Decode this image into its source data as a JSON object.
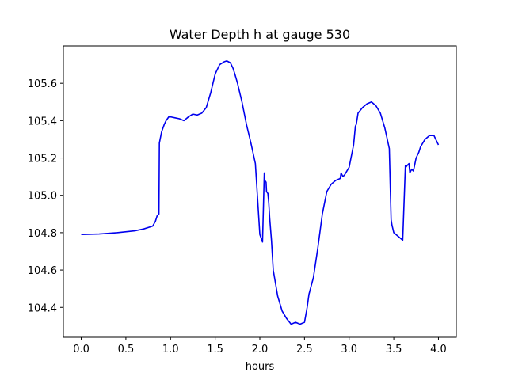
{
  "chart_data": {
    "type": "line",
    "title": "Water Depth h at gauge 530",
    "xlabel": "hours",
    "ylabel": "",
    "xlim": [
      -0.2,
      4.2
    ],
    "ylim": [
      104.24,
      105.8
    ],
    "xticks": [
      0.0,
      0.5,
      1.0,
      1.5,
      2.0,
      2.5,
      3.0,
      3.5,
      4.0
    ],
    "xtick_labels": [
      "0.0",
      "0.5",
      "1.0",
      "1.5",
      "2.0",
      "2.5",
      "3.0",
      "3.5",
      "4.0"
    ],
    "yticks": [
      104.4,
      104.6,
      104.8,
      105.0,
      105.2,
      105.4,
      105.6
    ],
    "ytick_labels": [
      "104.4",
      "104.6",
      "104.8",
      "105.0",
      "105.2",
      "105.4",
      "105.6"
    ],
    "grid": false,
    "legend": null,
    "colors": {
      "line": "#0000ee",
      "axes": "#000000",
      "background": "#ffffff"
    },
    "series": [
      {
        "x": [
          0.0,
          0.2,
          0.4,
          0.6,
          0.7,
          0.8,
          0.83,
          0.85,
          0.87,
          0.875,
          0.9,
          0.93,
          0.95,
          0.98,
          1.0,
          1.05,
          1.1,
          1.15,
          1.2,
          1.25,
          1.3,
          1.35,
          1.4,
          1.45,
          1.5,
          1.55,
          1.6,
          1.63,
          1.67,
          1.7,
          1.72,
          1.75,
          1.8,
          1.85,
          1.9,
          1.95,
          2.0,
          2.03,
          2.05,
          2.055,
          2.07,
          2.075,
          2.09,
          2.1,
          2.11,
          2.13,
          2.15,
          2.2,
          2.25,
          2.3,
          2.35,
          2.4,
          2.45,
          2.5,
          2.53,
          2.55,
          2.6,
          2.65,
          2.7,
          2.75,
          2.8,
          2.85,
          2.9,
          2.91,
          2.93,
          2.95,
          3.0,
          3.05,
          3.07,
          3.08,
          3.1,
          3.15,
          3.2,
          3.25,
          3.3,
          3.35,
          3.4,
          3.45,
          3.47,
          3.48,
          3.5,
          3.55,
          3.6,
          3.63,
          3.635,
          3.65,
          3.67,
          3.68,
          3.7,
          3.72,
          3.75,
          3.78,
          3.8,
          3.85,
          3.9,
          3.95,
          4.0
        ],
        "y": [
          104.79,
          104.793,
          104.8,
          104.81,
          104.82,
          104.835,
          104.86,
          104.89,
          104.9,
          105.28,
          105.34,
          105.38,
          105.4,
          105.42,
          105.42,
          105.415,
          105.41,
          105.4,
          105.42,
          105.435,
          105.43,
          105.44,
          105.47,
          105.55,
          105.65,
          105.7,
          105.715,
          105.72,
          105.71,
          105.68,
          105.65,
          105.6,
          105.5,
          105.38,
          105.28,
          105.17,
          104.79,
          104.75,
          105.12,
          105.08,
          105.07,
          105.02,
          105.01,
          104.96,
          104.88,
          104.76,
          104.6,
          104.46,
          104.38,
          104.34,
          104.31,
          104.32,
          104.31,
          104.32,
          104.4,
          104.47,
          104.56,
          104.72,
          104.9,
          105.02,
          105.06,
          105.08,
          105.09,
          105.12,
          105.1,
          105.11,
          105.15,
          105.27,
          105.37,
          105.38,
          105.44,
          105.47,
          105.49,
          105.5,
          105.48,
          105.44,
          105.36,
          105.25,
          104.87,
          104.84,
          104.8,
          104.78,
          104.76,
          105.16,
          105.15,
          105.16,
          105.17,
          105.12,
          105.14,
          105.13,
          105.2,
          105.23,
          105.26,
          105.3,
          105.32,
          105.32,
          105.27
        ]
      }
    ]
  }
}
